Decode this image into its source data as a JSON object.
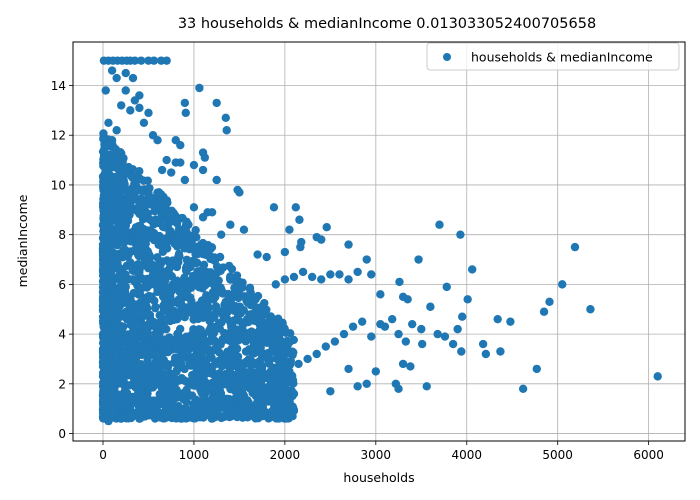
{
  "chart_data": {
    "type": "scatter",
    "title": "33 households & medianIncome 0.013033052400705658",
    "xlabel": "households",
    "ylabel": "medianIncome",
    "xlim": [
      -330,
      6400
    ],
    "ylim": [
      -0.3,
      15.75
    ],
    "x_ticks": [
      0,
      1000,
      2000,
      3000,
      4000,
      5000,
      6000
    ],
    "y_ticks": [
      0,
      2,
      4,
      6,
      8,
      10,
      12,
      14
    ],
    "grid": true,
    "legend_position": "upper right",
    "series": [
      {
        "name": "households & medianIncome",
        "color": "#1f77b4",
        "points": [
          [
            10,
            15.0
          ],
          [
            60,
            15.0
          ],
          [
            110,
            15.0
          ],
          [
            160,
            15.0
          ],
          [
            210,
            15.0
          ],
          [
            260,
            15.0
          ],
          [
            300,
            15.0
          ],
          [
            350,
            15.0
          ],
          [
            420,
            15.0
          ],
          [
            500,
            15.0
          ],
          [
            560,
            15.0
          ],
          [
            640,
            15.0
          ],
          [
            700,
            15.0
          ],
          [
            30,
            13.8
          ],
          [
            100,
            14.6
          ],
          [
            150,
            14.3
          ],
          [
            250,
            14.5
          ],
          [
            330,
            14.3
          ],
          [
            400,
            13.6
          ],
          [
            1060,
            13.9
          ],
          [
            900,
            13.3
          ],
          [
            910,
            12.9
          ],
          [
            1250,
            13.3
          ],
          [
            1350,
            12.7
          ],
          [
            1360,
            12.2
          ],
          [
            800,
            11.8
          ],
          [
            850,
            11.6
          ],
          [
            1100,
            11.3
          ],
          [
            1120,
            11.1
          ],
          [
            1100,
            10.6
          ],
          [
            1250,
            10.2
          ],
          [
            1000,
            10.8
          ],
          [
            1480,
            9.8
          ],
          [
            1500,
            9.7
          ],
          [
            1880,
            9.1
          ],
          [
            2120,
            9.1
          ],
          [
            2160,
            8.6
          ],
          [
            2460,
            8.3
          ],
          [
            3700,
            8.4
          ],
          [
            3930,
            8.0
          ],
          [
            2350,
            7.9
          ],
          [
            2400,
            7.8
          ],
          [
            2180,
            7.7
          ],
          [
            2170,
            7.5
          ],
          [
            2700,
            7.6
          ],
          [
            3470,
            7.0
          ],
          [
            2900,
            7.0
          ],
          [
            4060,
            6.6
          ],
          [
            5190,
            7.5
          ],
          [
            5050,
            6.0
          ],
          [
            4910,
            5.3
          ],
          [
            5360,
            5.0
          ],
          [
            4850,
            4.9
          ],
          [
            4340,
            4.6
          ],
          [
            4480,
            4.5
          ],
          [
            4010,
            5.4
          ],
          [
            3780,
            5.9
          ],
          [
            3600,
            5.1
          ],
          [
            3950,
            4.7
          ],
          [
            3900,
            4.2
          ],
          [
            3680,
            4.0
          ],
          [
            3760,
            3.9
          ],
          [
            3850,
            3.6
          ],
          [
            3940,
            3.3
          ],
          [
            4180,
            3.6
          ],
          [
            4210,
            3.2
          ],
          [
            4370,
            3.3
          ],
          [
            4770,
            2.6
          ],
          [
            4620,
            1.8
          ],
          [
            6100,
            2.3
          ],
          [
            3500,
            4.2
          ],
          [
            3400,
            4.4
          ],
          [
            3510,
            3.6
          ],
          [
            3330,
            3.7
          ],
          [
            3250,
            4.0
          ],
          [
            3100,
            4.3
          ],
          [
            3050,
            4.4
          ],
          [
            3180,
            4.6
          ],
          [
            3260,
            6.1
          ],
          [
            3300,
            5.5
          ],
          [
            3350,
            5.4
          ],
          [
            3050,
            5.6
          ],
          [
            3380,
            2.7
          ],
          [
            3300,
            2.8
          ],
          [
            3220,
            2.0
          ],
          [
            3250,
            1.8
          ],
          [
            3560,
            1.9
          ],
          [
            3000,
            2.5
          ],
          [
            2900,
            2.0
          ],
          [
            2800,
            1.9
          ],
          [
            2700,
            2.6
          ],
          [
            2500,
            1.7
          ],
          [
            2950,
            6.4
          ],
          [
            2800,
            6.5
          ],
          [
            2700,
            6.2
          ],
          [
            2600,
            6.4
          ],
          [
            2500,
            6.4
          ],
          [
            2400,
            6.2
          ],
          [
            2300,
            6.3
          ],
          [
            2200,
            6.5
          ],
          [
            2100,
            6.3
          ],
          [
            2000,
            6.2
          ],
          [
            1900,
            6.0
          ],
          [
            2950,
            3.9
          ],
          [
            2850,
            4.5
          ],
          [
            2750,
            4.3
          ],
          [
            2650,
            4.0
          ],
          [
            2550,
            3.7
          ],
          [
            2450,
            3.5
          ],
          [
            2350,
            3.2
          ],
          [
            2250,
            3.0
          ],
          [
            2150,
            2.8
          ],
          [
            2100,
            1.6
          ],
          [
            2050,
            2.5
          ],
          [
            1950,
            2.0
          ],
          [
            1850,
            1.6
          ],
          [
            1700,
            1.8
          ],
          [
            1600,
            0.7
          ],
          [
            1450,
            0.9
          ],
          [
            1100,
            0.75
          ],
          [
            1000,
            0.75
          ],
          [
            2000,
            7.3
          ],
          [
            2050,
            8.2
          ],
          [
            1800,
            7.1
          ],
          [
            1700,
            7.2
          ],
          [
            1550,
            8.2
          ],
          [
            1400,
            8.4
          ],
          [
            1300,
            8.0
          ],
          [
            1200,
            8.9
          ],
          [
            1150,
            8.9
          ],
          [
            1100,
            8.7
          ],
          [
            1000,
            9.1
          ],
          [
            900,
            10.2
          ],
          [
            850,
            10.9
          ],
          [
            800,
            10.9
          ],
          [
            750,
            10.5
          ],
          [
            700,
            11.0
          ],
          [
            650,
            10.6
          ],
          [
            600,
            11.8
          ],
          [
            550,
            12.0
          ],
          [
            500,
            12.9
          ],
          [
            450,
            12.5
          ],
          [
            400,
            13.1
          ],
          [
            350,
            13.4
          ],
          [
            300,
            13.0
          ],
          [
            250,
            13.8
          ],
          [
            200,
            13.2
          ],
          [
            150,
            12.2
          ],
          [
            100,
            11.8
          ],
          [
            60,
            12.5
          ],
          [
            40,
            11.0
          ],
          [
            20,
            10.2
          ],
          [
            15,
            8.0
          ],
          [
            10,
            7.2
          ],
          [
            20,
            6.0
          ],
          [
            15,
            5.0
          ],
          [
            10,
            3.8
          ],
          [
            20,
            2.8
          ],
          [
            15,
            1.8
          ],
          [
            10,
            1.2
          ],
          [
            30,
            0.6
          ],
          [
            60,
            0.5
          ],
          [
            120,
            0.9
          ],
          [
            200,
            0.6
          ],
          [
            300,
            0.7
          ],
          [
            400,
            0.6
          ],
          [
            500,
            0.8
          ],
          [
            600,
            0.9
          ],
          [
            700,
            0.7
          ],
          [
            800,
            0.85
          ],
          [
            900,
            1.0
          ],
          [
            1000,
            1.1
          ],
          [
            1200,
            1.2
          ],
          [
            1300,
            1.4
          ],
          [
            1400,
            1.2
          ],
          [
            1500,
            1.5
          ]
        ]
      }
    ]
  }
}
